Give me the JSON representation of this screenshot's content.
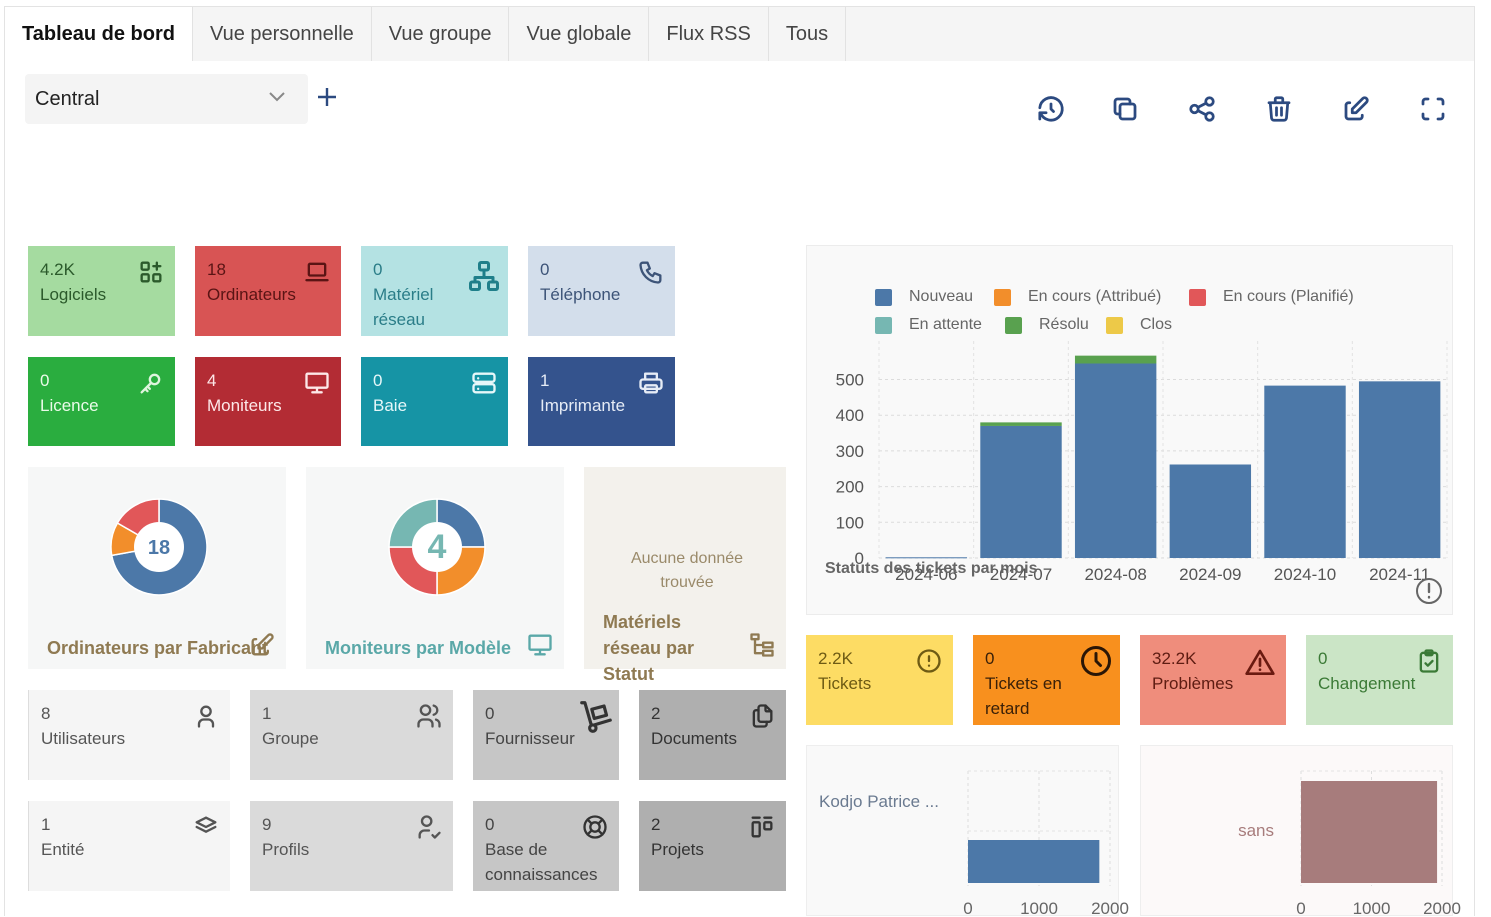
{
  "tabs": [
    {
      "label": "Tableau de bord",
      "active": true
    },
    {
      "label": "Vue personnelle"
    },
    {
      "label": "Vue groupe"
    },
    {
      "label": "Vue globale"
    },
    {
      "label": "Flux RSS"
    },
    {
      "label": "Tous"
    }
  ],
  "dashboard_select": {
    "value": "Central"
  },
  "toolbar": {
    "icons": [
      "history-icon",
      "clone-icon",
      "share-icon",
      "delete-icon",
      "edit-icon",
      "fullscreen-icon"
    ]
  },
  "cards": {
    "logiciels": {
      "count": "4.2K",
      "label": "Logiciels",
      "color": "#a5dba0"
    },
    "ordinateurs": {
      "count": "18",
      "label": "Ordinateurs",
      "color": "#d85454"
    },
    "materiel_reseau": {
      "count": "0",
      "label": "Matériel réseau",
      "color": "#b4e2e3"
    },
    "telephone": {
      "count": "0",
      "label": "Téléphone",
      "color": "#d3deeb"
    },
    "licence": {
      "count": "0",
      "label": "Licence",
      "color": "#2aad3f"
    },
    "moniteurs": {
      "count": "4",
      "label": "Moniteurs",
      "color": "#b32c34"
    },
    "baie": {
      "count": "0",
      "label": "Baie",
      "color": "#1694a5"
    },
    "imprimante": {
      "count": "1",
      "label": "Imprimante",
      "color": "#34538d"
    },
    "tickets": {
      "count": "2.2K",
      "label": "Tickets",
      "color": "#fddc64"
    },
    "tickets_retard": {
      "count": "0",
      "label": "Tickets en retard",
      "color": "#f8901e"
    },
    "problemes": {
      "count": "32.2K",
      "label": "Problèmes",
      "color": "#ef8d7c"
    },
    "changement": {
      "count": "0",
      "label": "Changement",
      "color": "#cbe5c6"
    },
    "utilisateurs": {
      "count": "8",
      "label": "Utilisateurs",
      "color": "#f5f5f5"
    },
    "groupe": {
      "count": "1",
      "label": "Groupe",
      "color": "#dadada"
    },
    "fournisseur": {
      "count": "0",
      "label": "Fournisseur",
      "color": "#c6c6c6"
    },
    "documents": {
      "count": "2",
      "label": "Documents",
      "color": "#afafaf"
    },
    "entite": {
      "count": "1",
      "label": "Entité",
      "color": "#f5f5f5"
    },
    "profils": {
      "count": "9",
      "label": "Profils",
      "color": "#dadada"
    },
    "base": {
      "count": "0",
      "label": "Base de connaissances",
      "color": "#c6c6c6"
    },
    "projets": {
      "count": "2",
      "label": "Projets",
      "color": "#afafaf"
    }
  },
  "pies": {
    "ordinateurs": {
      "total": "18",
      "title": "Ordinateurs par Fabricant",
      "slices": [
        {
          "value": 13,
          "color": "#4c78a8"
        },
        {
          "value": 2,
          "color": "#f28e2b"
        },
        {
          "value": 3,
          "color": "#e15759"
        }
      ]
    },
    "moniteurs": {
      "total": "4",
      "title": "Moniteurs par Modèle",
      "slices": [
        {
          "value": 1,
          "color": "#4c78a8"
        },
        {
          "value": 1,
          "color": "#f28e2b"
        },
        {
          "value": 1,
          "color": "#e15759"
        },
        {
          "value": 1,
          "color": "#76b7b2"
        }
      ]
    },
    "materiels": {
      "empty": "Aucune donnée trouvée",
      "title": "Matériels réseau par Statut"
    }
  },
  "chart_data": [
    {
      "type": "bar",
      "title": "Statuts des tickets par mois",
      "categories": [
        "2024-06",
        "2024-07",
        "2024-08",
        "2024-09",
        "2024-10",
        "2024-11"
      ],
      "series": [
        {
          "name": "Nouveau",
          "color": "#4c78a8",
          "values": [
            2,
            370,
            545,
            262,
            483,
            495
          ]
        },
        {
          "name": "En cours (Attribué)",
          "color": "#f28e2b",
          "values": [
            0,
            0,
            0,
            0,
            0,
            0
          ]
        },
        {
          "name": "En cours (Planifié)",
          "color": "#e15759",
          "values": [
            0,
            0,
            0,
            0,
            0,
            0
          ]
        },
        {
          "name": "En attente",
          "color": "#76b7b2",
          "values": [
            0,
            0,
            0,
            0,
            0,
            0
          ]
        },
        {
          "name": "Résolu",
          "color": "#59a14f",
          "values": [
            0,
            10,
            22,
            0,
            0,
            0
          ]
        },
        {
          "name": "Clos",
          "color": "#edc948",
          "values": [
            0,
            0,
            0,
            0,
            0,
            0
          ]
        }
      ],
      "yticks": [
        "0",
        "100",
        "200",
        "300",
        "400",
        "500"
      ],
      "ylim": [
        0,
        580
      ]
    },
    {
      "type": "bar",
      "orientation": "horizontal",
      "categories": [
        "Kodjo Patrice ..."
      ],
      "values": [
        1850
      ],
      "xticks": [
        "0",
        "1000",
        "2000"
      ],
      "color": "#4c78a8"
    },
    {
      "type": "bar",
      "orientation": "horizontal",
      "categories": [
        "sans"
      ],
      "values": [
        1930
      ],
      "xticks": [
        "0",
        "1000",
        "2000"
      ],
      "color": "#a77c7c"
    }
  ]
}
